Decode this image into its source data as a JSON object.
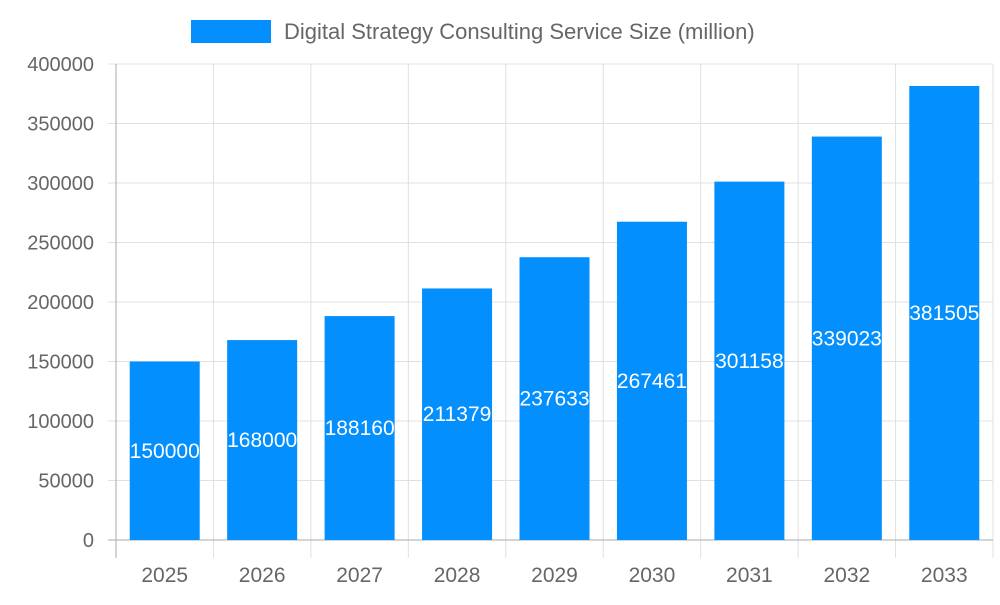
{
  "chart_data": {
    "type": "bar",
    "title": "",
    "xlabel": "",
    "ylabel": "",
    "categories": [
      "2025",
      "2026",
      "2027",
      "2028",
      "2029",
      "2030",
      "2031",
      "2032",
      "2033"
    ],
    "series": [
      {
        "name": "Digital Strategy Consulting Service Size (million)",
        "values": [
          150000,
          168000,
          188160,
          211379,
          237633,
          267461,
          301158,
          339023,
          381505
        ],
        "color": "#038ffd"
      }
    ],
    "ylim": [
      0,
      400000
    ],
    "yticks": [
      0,
      50000,
      100000,
      150000,
      200000,
      250000,
      300000,
      350000,
      400000
    ],
    "grid": true,
    "legend": "top",
    "data_labels": true
  }
}
